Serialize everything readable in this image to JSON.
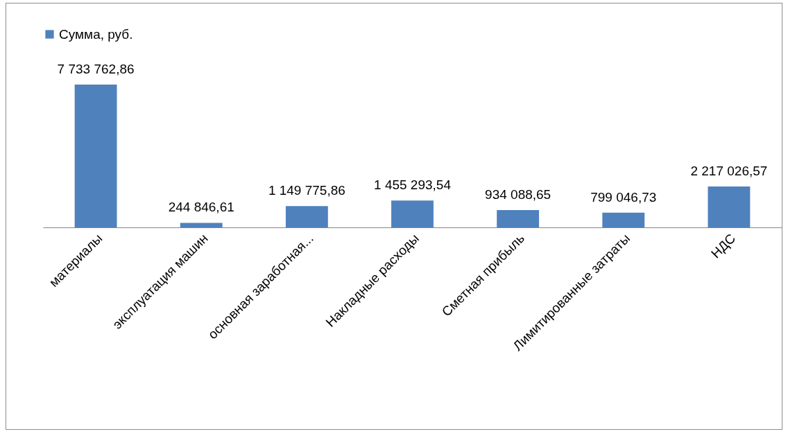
{
  "chart_data": {
    "type": "bar",
    "categories": [
      "материалы",
      "эксплуатация машин",
      "основная заработная...",
      "Накладные расходы",
      "Сметная прибыль",
      "Лимитированные затраты",
      "НДС"
    ],
    "series": [
      {
        "name": "Сумма, руб.",
        "color": "#4f81bd",
        "values": [
          7733762.86,
          244846.61,
          1149775.86,
          1455293.54,
          934088.65,
          799046.73,
          2217026.57
        ],
        "value_labels": [
          "7 733 762,86",
          "244 846,61",
          "1 149 775,86",
          "1 455 293,54",
          "934 088,65",
          "799 046,73",
          "2 217 026,57"
        ]
      }
    ],
    "legend": "top"
  }
}
